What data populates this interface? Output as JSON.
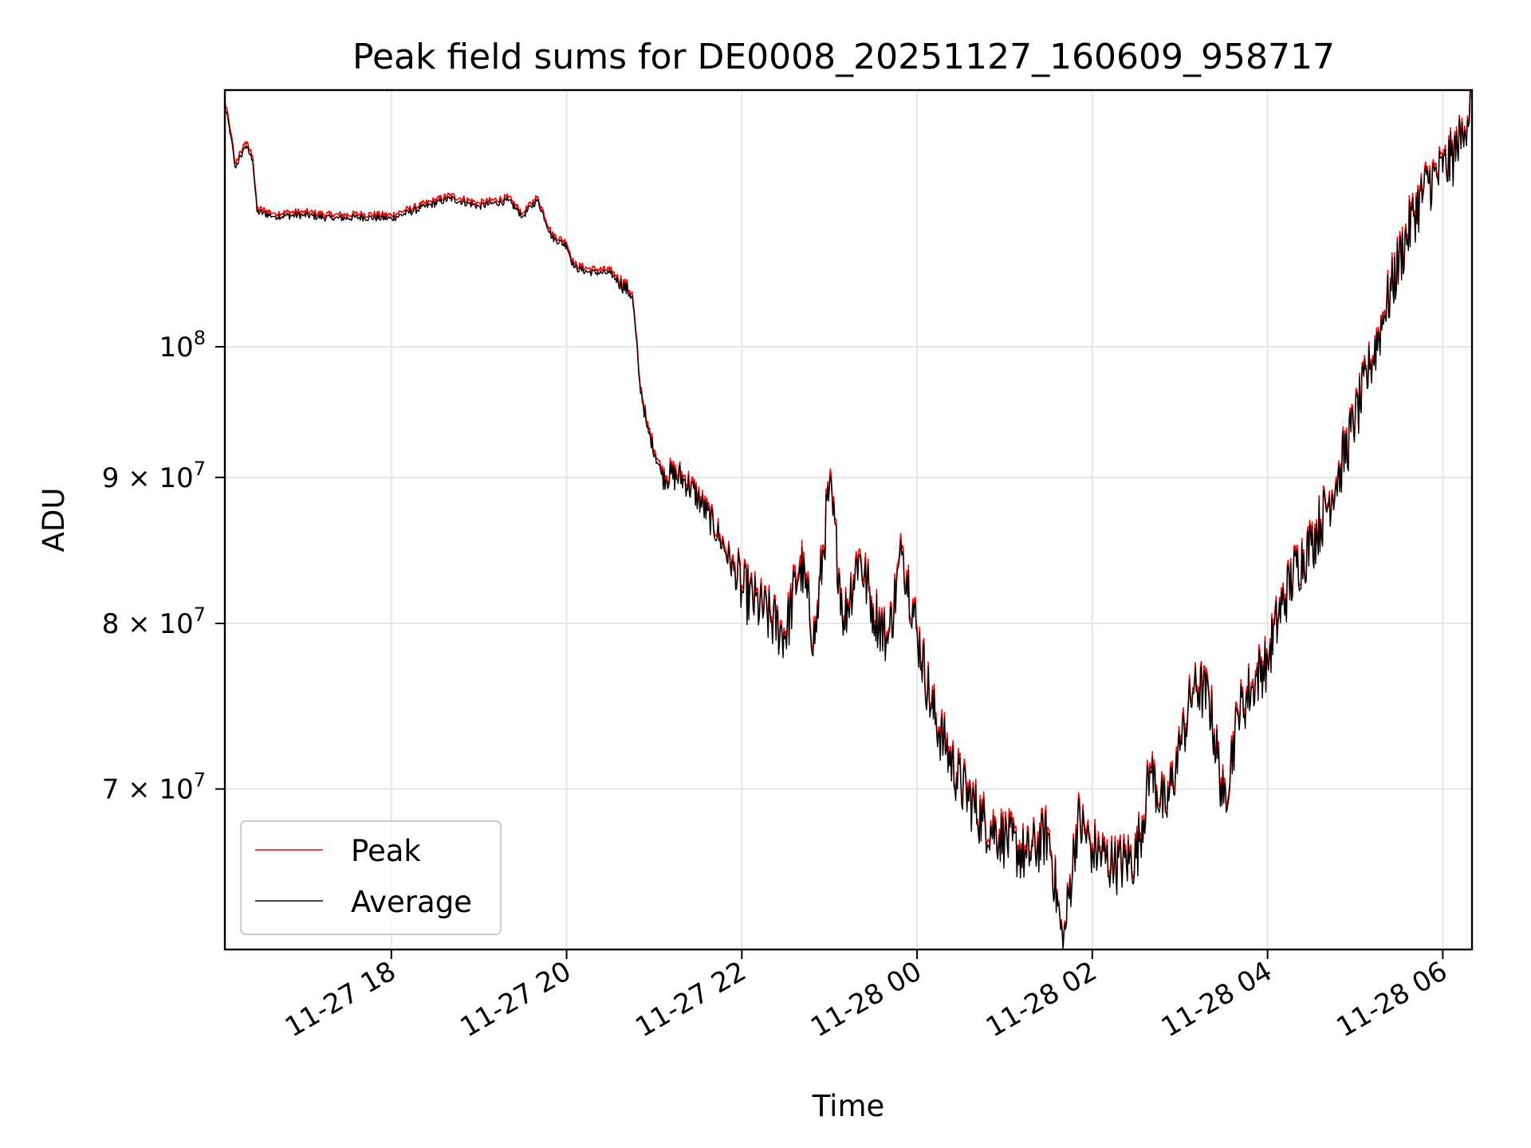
{
  "chart_data": {
    "type": "line",
    "title": "Peak field sums for DE0008_20251127_160609_958717",
    "xlabel": "Time",
    "ylabel": "ADU",
    "yscale": "log",
    "ylim": [
      61500000,
      123000000
    ],
    "xlim": [
      "2025-11-27 16:06",
      "2025-11-28 06:20"
    ],
    "grid": true,
    "legend_position": "lower-left",
    "x_ticks": [
      {
        "value": "2025-11-27 18:00",
        "label": "11-27 18"
      },
      {
        "value": "2025-11-27 20:00",
        "label": "11-27 20"
      },
      {
        "value": "2025-11-27 22:00",
        "label": "11-27 22"
      },
      {
        "value": "2025-11-28 00:00",
        "label": "11-28 00"
      },
      {
        "value": "2025-11-28 02:00",
        "label": "11-28 02"
      },
      {
        "value": "2025-11-28 04:00",
        "label": "11-28 04"
      },
      {
        "value": "2025-11-28 06:00",
        "label": "11-28 06"
      }
    ],
    "y_ticks": [
      {
        "value": 70000000,
        "base": "7 × 10",
        "exp": "7"
      },
      {
        "value": 80000000,
        "base": "8 × 10",
        "exp": "7"
      },
      {
        "value": 90000000,
        "base": "9 × 10",
        "exp": "7"
      },
      {
        "value": 100000000,
        "base": "10",
        "exp": "8"
      }
    ],
    "series": [
      {
        "name": "Peak",
        "color": "#ff0000",
        "points": [
          [
            "2025-11-27 16:06",
            122000000
          ],
          [
            "2025-11-27 16:10",
            119000000
          ],
          [
            "2025-11-27 16:13",
            116000000
          ],
          [
            "2025-11-27 16:17",
            117000000
          ],
          [
            "2025-11-27 16:20",
            118000000
          ],
          [
            "2025-11-27 16:25",
            116700000
          ],
          [
            "2025-11-27 16:28",
            111800000
          ],
          [
            "2025-11-27 16:40",
            111400000
          ],
          [
            "2025-11-27 17:00",
            111500000
          ],
          [
            "2025-11-27 17:20",
            111200000
          ],
          [
            "2025-11-27 17:40",
            111300000
          ],
          [
            "2025-11-27 18:00",
            111200000
          ],
          [
            "2025-11-27 18:20",
            112100000
          ],
          [
            "2025-11-27 18:40",
            113000000
          ],
          [
            "2025-11-27 19:00",
            112300000
          ],
          [
            "2025-11-27 19:20",
            112800000
          ],
          [
            "2025-11-27 19:30",
            111400000
          ],
          [
            "2025-11-27 19:40",
            112900000
          ],
          [
            "2025-11-27 19:50",
            109500000
          ],
          [
            "2025-11-27 20:00",
            108800000
          ],
          [
            "2025-11-27 20:05",
            106900000
          ],
          [
            "2025-11-27 20:15",
            106500000
          ],
          [
            "2025-11-27 20:30",
            106400000
          ],
          [
            "2025-11-27 20:45",
            104500000
          ],
          [
            "2025-11-27 20:50",
            97500000
          ],
          [
            "2025-11-27 20:55",
            94000000
          ],
          [
            "2025-11-27 21:05",
            90500000
          ],
          [
            "2025-11-27 21:20",
            90200000
          ],
          [
            "2025-11-27 21:30",
            88800000
          ],
          [
            "2025-11-27 21:45",
            86000000
          ],
          [
            "2025-11-27 22:00",
            82500000
          ],
          [
            "2025-11-27 22:15",
            81000000
          ],
          [
            "2025-11-27 22:30",
            79500000
          ],
          [
            "2025-11-27 22:40",
            84500000
          ],
          [
            "2025-11-27 22:50",
            79000000
          ],
          [
            "2025-11-27 23:00",
            89700000
          ],
          [
            "2025-11-27 23:10",
            80500000
          ],
          [
            "2025-11-27 23:20",
            84800000
          ],
          [
            "2025-11-27 23:30",
            81300000
          ],
          [
            "2025-11-27 23:40",
            79000000
          ],
          [
            "2025-11-27 23:50",
            85200000
          ],
          [
            "2025-11-28 00:00",
            79700000
          ],
          [
            "2025-11-28 00:10",
            75000000
          ],
          [
            "2025-11-28 00:20",
            72500000
          ],
          [
            "2025-11-28 00:30",
            70500000
          ],
          [
            "2025-11-28 00:45",
            68500000
          ],
          [
            "2025-11-28 01:00",
            67500000
          ],
          [
            "2025-11-28 01:15",
            66500000
          ],
          [
            "2025-11-28 01:30",
            67800000
          ],
          [
            "2025-11-28 01:40",
            61600000
          ],
          [
            "2025-11-28 01:50",
            68500000
          ],
          [
            "2025-11-28 02:00",
            67000000
          ],
          [
            "2025-11-28 02:15",
            66000000
          ],
          [
            "2025-11-28 02:30",
            66500000
          ],
          [
            "2025-11-28 02:40",
            71200000
          ],
          [
            "2025-11-28 02:50",
            69000000
          ],
          [
            "2025-11-28 03:00",
            72500000
          ],
          [
            "2025-11-28 03:10",
            76500000
          ],
          [
            "2025-11-28 03:20",
            75500000
          ],
          [
            "2025-11-28 03:30",
            69500000
          ],
          [
            "2025-11-28 03:40",
            74500000
          ],
          [
            "2025-11-28 03:50",
            76500000
          ],
          [
            "2025-11-28 04:00",
            78000000
          ],
          [
            "2025-11-28 04:10",
            81500000
          ],
          [
            "2025-11-28 04:20",
            84000000
          ],
          [
            "2025-11-28 04:30",
            85500000
          ],
          [
            "2025-11-28 04:40",
            88000000
          ],
          [
            "2025-11-28 04:50",
            91000000
          ],
          [
            "2025-11-28 05:00",
            94500000
          ],
          [
            "2025-11-28 05:10",
            98500000
          ],
          [
            "2025-11-28 05:20",
            103000000
          ],
          [
            "2025-11-28 05:30",
            107500000
          ],
          [
            "2025-11-28 05:40",
            111500000
          ],
          [
            "2025-11-28 05:50",
            114500000
          ],
          [
            "2025-11-28 06:00",
            115500000
          ],
          [
            "2025-11-28 06:10",
            117500000
          ],
          [
            "2025-11-28 06:15",
            119500000
          ],
          [
            "2025-11-28 06:20",
            123000000
          ]
        ]
      },
      {
        "name": "Average",
        "color": "#000000",
        "points": [
          [
            "2025-11-27 16:06",
            121500000
          ],
          [
            "2025-11-27 16:10",
            118600000
          ],
          [
            "2025-11-27 16:13",
            115600000
          ],
          [
            "2025-11-27 16:17",
            116600000
          ],
          [
            "2025-11-27 16:20",
            117600000
          ],
          [
            "2025-11-27 16:25",
            116300000
          ],
          [
            "2025-11-27 16:28",
            111500000
          ],
          [
            "2025-11-27 16:40",
            111100000
          ],
          [
            "2025-11-27 17:00",
            111200000
          ],
          [
            "2025-11-27 17:20",
            110900000
          ],
          [
            "2025-11-27 17:40",
            111000000
          ],
          [
            "2025-11-27 18:00",
            110900000
          ],
          [
            "2025-11-27 18:20",
            111800000
          ],
          [
            "2025-11-27 18:40",
            112700000
          ],
          [
            "2025-11-27 19:00",
            112000000
          ],
          [
            "2025-11-27 19:20",
            112500000
          ],
          [
            "2025-11-27 19:30",
            111100000
          ],
          [
            "2025-11-27 19:40",
            112600000
          ],
          [
            "2025-11-27 19:50",
            109200000
          ],
          [
            "2025-11-27 20:00",
            108500000
          ],
          [
            "2025-11-27 20:05",
            106600000
          ],
          [
            "2025-11-27 20:15",
            106200000
          ],
          [
            "2025-11-27 20:30",
            106100000
          ],
          [
            "2025-11-27 20:45",
            104200000
          ],
          [
            "2025-11-27 20:50",
            97200000
          ],
          [
            "2025-11-27 20:55",
            93700000
          ],
          [
            "2025-11-27 21:05",
            90200000
          ],
          [
            "2025-11-27 21:20",
            89900000
          ],
          [
            "2025-11-27 21:30",
            88500000
          ],
          [
            "2025-11-27 21:45",
            85700000
          ],
          [
            "2025-11-27 22:00",
            82200000
          ],
          [
            "2025-11-27 22:15",
            80700000
          ],
          [
            "2025-11-27 22:30",
            79200000
          ],
          [
            "2025-11-27 22:40",
            84000000
          ],
          [
            "2025-11-27 22:50",
            78700000
          ],
          [
            "2025-11-27 23:00",
            89300000
          ],
          [
            "2025-11-27 23:10",
            80200000
          ],
          [
            "2025-11-27 23:20",
            84400000
          ],
          [
            "2025-11-27 23:30",
            81000000
          ],
          [
            "2025-11-27 23:40",
            78700000
          ],
          [
            "2025-11-27 23:50",
            84800000
          ],
          [
            "2025-11-28 00:00",
            79400000
          ],
          [
            "2025-11-28 00:10",
            74700000
          ],
          [
            "2025-11-28 00:20",
            72200000
          ],
          [
            "2025-11-28 00:30",
            70200000
          ],
          [
            "2025-11-28 00:45",
            68200000
          ],
          [
            "2025-11-28 01:00",
            67200000
          ],
          [
            "2025-11-28 01:15",
            66200000
          ],
          [
            "2025-11-28 01:30",
            67500000
          ],
          [
            "2025-11-28 01:40",
            61500000
          ],
          [
            "2025-11-28 01:50",
            68200000
          ],
          [
            "2025-11-28 02:00",
            66700000
          ],
          [
            "2025-11-28 02:15",
            65700000
          ],
          [
            "2025-11-28 02:30",
            66200000
          ],
          [
            "2025-11-28 02:40",
            70900000
          ],
          [
            "2025-11-28 02:50",
            68700000
          ],
          [
            "2025-11-28 03:00",
            72200000
          ],
          [
            "2025-11-28 03:10",
            76200000
          ],
          [
            "2025-11-28 03:20",
            75200000
          ],
          [
            "2025-11-28 03:30",
            69200000
          ],
          [
            "2025-11-28 03:40",
            74200000
          ],
          [
            "2025-11-28 03:50",
            76200000
          ],
          [
            "2025-11-28 04:00",
            77700000
          ],
          [
            "2025-11-28 04:10",
            81200000
          ],
          [
            "2025-11-28 04:20",
            83700000
          ],
          [
            "2025-11-28 04:30",
            85200000
          ],
          [
            "2025-11-28 04:40",
            87700000
          ],
          [
            "2025-11-28 04:50",
            90700000
          ],
          [
            "2025-11-28 05:00",
            94200000
          ],
          [
            "2025-11-28 05:10",
            98200000
          ],
          [
            "2025-11-28 05:20",
            102600000
          ],
          [
            "2025-11-28 05:30",
            107100000
          ],
          [
            "2025-11-28 05:40",
            111100000
          ],
          [
            "2025-11-28 05:50",
            114100000
          ],
          [
            "2025-11-28 06:00",
            115100000
          ],
          [
            "2025-11-28 06:10",
            117100000
          ],
          [
            "2025-11-28 06:15",
            119100000
          ],
          [
            "2025-11-28 06:20",
            122500000
          ]
        ]
      }
    ],
    "legend": [
      {
        "label": "Peak",
        "color": "#ff0000"
      },
      {
        "label": "Average",
        "color": "#000000"
      }
    ]
  }
}
